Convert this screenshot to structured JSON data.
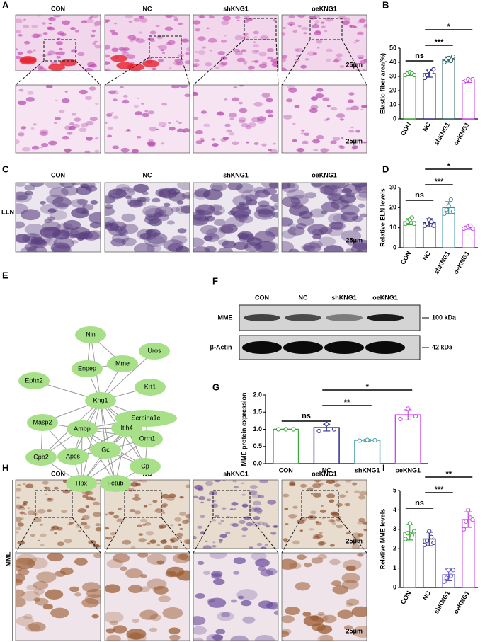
{
  "figure": {
    "panel_letters": [
      "A",
      "B",
      "C",
      "D",
      "E",
      "F",
      "G",
      "H",
      "I"
    ],
    "A": {
      "columns": [
        "CON",
        "NC",
        "shKNG1",
        "oeKNG1"
      ],
      "scale_bars": [
        "25μm",
        "25μm"
      ]
    },
    "C": {
      "row_label": "ELN",
      "columns": [
        "CON",
        "NC",
        "shKNG1",
        "oeKNG1"
      ],
      "scale_bar": "25μm"
    },
    "E": {
      "nodes": [
        "Nln",
        "Uros",
        "Enpep",
        "Mme",
        "Ephx2",
        "Krt1",
        "Kng1",
        "Serpina1e",
        "Masp2",
        "Ambp",
        "Itih4",
        "Orm1",
        "Gc",
        "Cpb2",
        "Apcs",
        "Cp",
        "Hpx",
        "Fetub"
      ]
    },
    "F": {
      "columns": [
        "CON",
        "NC",
        "shKNG1",
        "oeKNG1"
      ],
      "rows": [
        "MME",
        "β-Actin"
      ],
      "sizes": [
        "100 kDa",
        "42 kDa"
      ]
    },
    "H": {
      "row_label": "MME",
      "columns": [
        "CON",
        "NC",
        "shKNG1",
        "oeKNG1"
      ],
      "scale_bars": [
        "25μm",
        "25μm"
      ]
    }
  },
  "chart_data": [
    {
      "type": "bar",
      "y_label": "Elastic fiber area(%)",
      "categories": [
        "CON",
        "NC",
        "shKNG1",
        "oeKNG1"
      ],
      "values": [
        32,
        32,
        42,
        27
      ],
      "errors": [
        1.2,
        2.5,
        1.8,
        1.2
      ],
      "points": [
        [
          31,
          32,
          33,
          32,
          31
        ],
        [
          29,
          31,
          34,
          33,
          35
        ],
        [
          40,
          42,
          43,
          41,
          44
        ],
        [
          26,
          27,
          28,
          27,
          28
        ]
      ],
      "colors": [
        "#3aa83a",
        "#2e2e8c",
        "#2b5f5f",
        "#cc44ee"
      ],
      "ylim": [
        0,
        50
      ],
      "yticks": [
        0,
        10,
        20,
        30,
        40,
        50
      ],
      "significance": [
        {
          "from": "CON",
          "to": "NC",
          "label": "ns"
        },
        {
          "from": "NC",
          "to": "shKNG1",
          "label": "***"
        },
        {
          "from": "NC",
          "to": "oeKNG1",
          "label": "*"
        }
      ]
    },
    {
      "type": "bar",
      "y_label": "Relative ELN levels",
      "categories": [
        "CON",
        "NC",
        "shKNG1",
        "oeKNG1"
      ],
      "values": [
        13,
        12.5,
        20,
        10
      ],
      "errors": [
        1.5,
        2,
        3,
        0.8
      ],
      "points": [
        [
          12,
          13,
          14,
          15,
          12
        ],
        [
          11,
          12,
          14,
          13,
          11
        ],
        [
          17,
          19,
          21,
          24,
          18
        ],
        [
          9.5,
          10,
          10.5,
          11,
          9.5
        ]
      ],
      "colors": [
        "#3aa83a",
        "#2e2e8c",
        "#3a8fa0",
        "#cc44ee"
      ],
      "ylim": [
        0,
        30
      ],
      "yticks": [
        0,
        10,
        20,
        30
      ],
      "significance": [
        {
          "from": "CON",
          "to": "NC",
          "label": "ns"
        },
        {
          "from": "NC",
          "to": "shKNG1",
          "label": "***"
        },
        {
          "from": "NC",
          "to": "oeKNG1",
          "label": "*"
        }
      ]
    },
    {
      "type": "bar",
      "y_label": "MME protein expression",
      "categories": [
        "CON",
        "NC",
        "shKNG1",
        "oeKNG1"
      ],
      "values": [
        1.0,
        1.05,
        0.68,
        1.42
      ],
      "errors": [
        0,
        0.1,
        0.03,
        0.15
      ],
      "points": [
        [
          1.0,
          1.0,
          1.0
        ],
        [
          0.95,
          1.15,
          1.0
        ],
        [
          0.67,
          0.69,
          0.68
        ],
        [
          1.3,
          1.6,
          1.38
        ]
      ],
      "colors": [
        "#3aa83a",
        "#2e2e8c",
        "#4aa3a8",
        "#cc44ee"
      ],
      "ylim": [
        0,
        2
      ],
      "yticks": [
        {
          "value": 0,
          "label": "0.0"
        },
        0.5,
        {
          "value": 1,
          "label": "1.0"
        },
        1.5,
        {
          "value": 2,
          "label": "2.0"
        }
      ],
      "significance": [
        {
          "from": "CON",
          "to": "NC",
          "label": "ns"
        },
        {
          "from": "NC",
          "to": "shKNG1",
          "label": "**"
        },
        {
          "from": "NC",
          "to": "oeKNG1",
          "label": "*"
        }
      ]
    },
    {
      "type": "bar",
      "y_label": "Relative MME levels",
      "categories": [
        "CON",
        "NC",
        "shKNG1",
        "oeKNG1"
      ],
      "values": [
        2.85,
        2.5,
        0.65,
        3.5
      ],
      "errors": [
        0.4,
        0.35,
        0.3,
        0.4
      ],
      "points": [
        [
          2.5,
          2.8,
          3.3,
          2.7,
          2.9
        ],
        [
          2.2,
          2.4,
          2.9,
          2.6,
          2.3
        ],
        [
          0.3,
          0.5,
          0.9,
          0.6,
          0.9
        ],
        [
          3.0,
          3.4,
          4.0,
          3.6,
          3.5
        ]
      ],
      "colors": [
        "#3aa83a",
        "#2e2e8c",
        "#5a4cc8",
        "#cc44ee"
      ],
      "ylim": [
        0,
        5
      ],
      "yticks": [
        0,
        1,
        2,
        3,
        4,
        5
      ],
      "significance": [
        {
          "from": "CON",
          "to": "NC",
          "label": "ns"
        },
        {
          "from": "NC",
          "to": "shKNG1",
          "label": "***"
        },
        {
          "from": "NC",
          "to": "oeKNG1",
          "label": "**"
        }
      ]
    }
  ]
}
